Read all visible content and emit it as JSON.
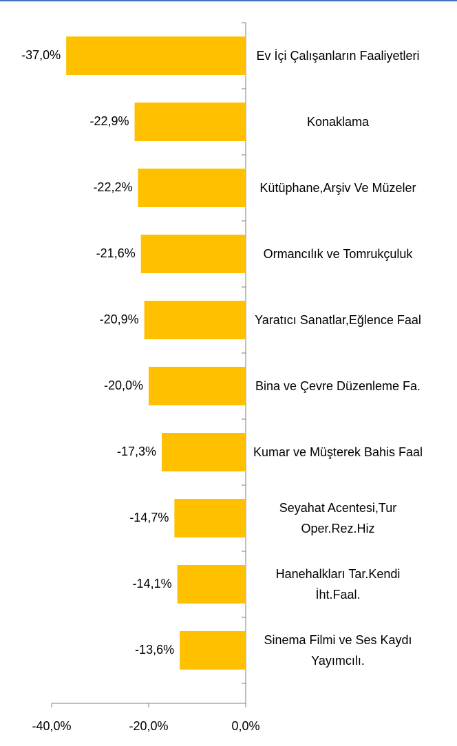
{
  "chart_data": {
    "type": "bar",
    "orientation": "horizontal",
    "categories": [
      "Ev İçi Çalışanların Faaliyetleri",
      "Konaklama",
      "Kütüphane,Arşiv Ve Müzeler",
      "Ormancılık ve Tomrukçuluk",
      "Yaratıcı Sanatlar,Eğlence Faal",
      "Bina ve Çevre Düzenleme Fa.",
      "Kumar ve Müşterek Bahis Faal",
      "Seyahat Acentesi,Tur Oper.Rez.Hiz",
      "Hanehalkları Tar.Kendi İht.Faal.",
      "Sinema Filmi ve Ses Kaydı Yayımcılı."
    ],
    "values": [
      -37.0,
      -22.9,
      -22.2,
      -21.6,
      -20.9,
      -20.0,
      -17.3,
      -14.7,
      -14.1,
      -13.6
    ],
    "value_labels": [
      "-37,0%",
      "-22,9%",
      "-22,2%",
      "-21,6%",
      "-20,9%",
      "-20,0%",
      "-17,3%",
      "-14,7%",
      "-14,1%",
      "-13,6%"
    ],
    "color": "#FFC000",
    "xlim": [
      -40,
      0
    ],
    "xticks": [
      {
        "value": -40,
        "label": "-40,0%"
      },
      {
        "value": -20,
        "label": "-20,0%"
      },
      {
        "value": 0,
        "label": "0,0%"
      }
    ]
  }
}
